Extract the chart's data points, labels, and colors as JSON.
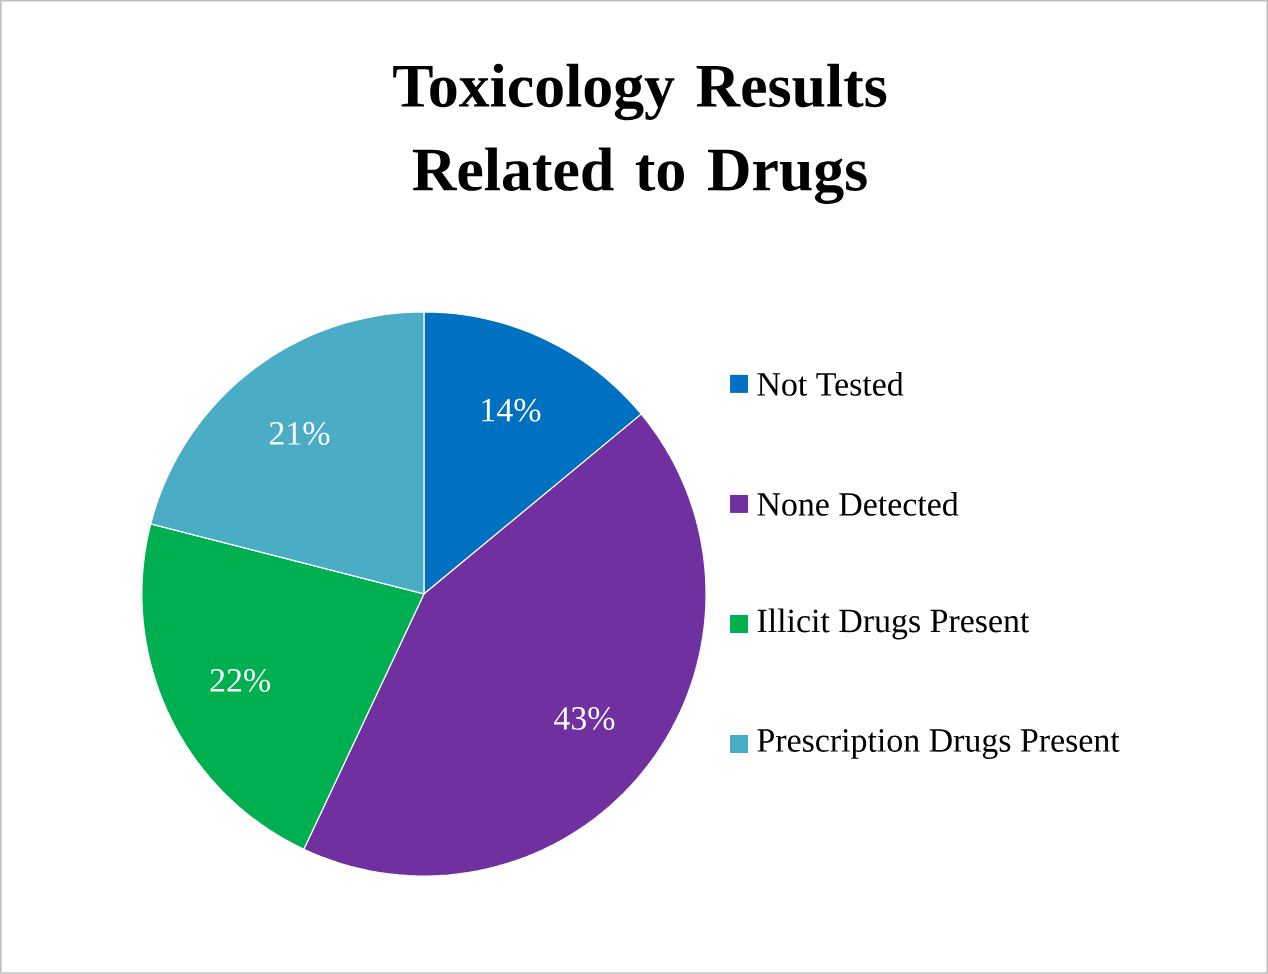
{
  "chart_data": {
    "type": "pie",
    "title": "Toxicology Results Related to Drugs",
    "categories": [
      "Not Tested",
      "None Detected",
      "Illicit Drugs Present",
      "Prescription Drugs Present"
    ],
    "values": [
      14,
      43,
      22,
      21
    ],
    "value_labels": [
      "14%",
      "43%",
      "22%",
      "21%"
    ],
    "colors": [
      "#0070c0",
      "#7030a0",
      "#00b050",
      "#4bacc6"
    ],
    "legend": "right"
  }
}
